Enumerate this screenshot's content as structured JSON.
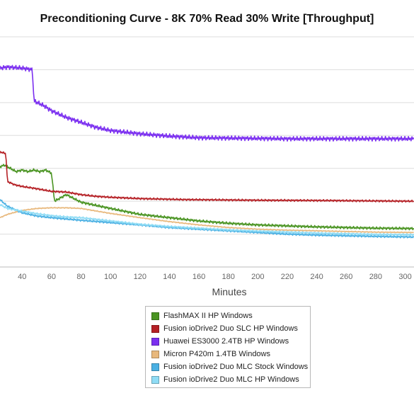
{
  "chart_data": {
    "type": "line",
    "title": "Preconditioning Curve - 8K 70% Read 30% Write [Throughput]",
    "xlabel": "Minutes",
    "ylabel": "",
    "xlim": [
      25,
      306
    ],
    "ylim": [
      0,
      7
    ],
    "x_ticks": [
      40,
      60,
      80,
      100,
      120,
      140,
      160,
      180,
      200,
      220,
      240,
      260,
      280,
      300
    ],
    "y_gridlines": [
      1,
      2,
      3,
      4,
      5,
      6,
      7
    ],
    "grid": true,
    "legend_position": "bottom",
    "series": [
      {
        "name": "FlashMAX II HP Windows",
        "color": "#4a9422",
        "noise": 0.04,
        "points": [
          [
            25,
            3.05
          ],
          [
            28,
            3.1
          ],
          [
            32,
            3.0
          ],
          [
            36,
            2.9
          ],
          [
            40,
            2.95
          ],
          [
            44,
            2.9
          ],
          [
            48,
            2.95
          ],
          [
            52,
            2.9
          ],
          [
            56,
            2.95
          ],
          [
            60,
            2.85
          ],
          [
            62,
            2.0
          ],
          [
            70,
            2.2
          ],
          [
            80,
            1.97
          ],
          [
            100,
            1.78
          ],
          [
            120,
            1.6
          ],
          [
            140,
            1.5
          ],
          [
            160,
            1.4
          ],
          [
            180,
            1.33
          ],
          [
            200,
            1.28
          ],
          [
            220,
            1.25
          ],
          [
            240,
            1.22
          ],
          [
            260,
            1.2
          ],
          [
            280,
            1.18
          ],
          [
            306,
            1.17
          ]
        ]
      },
      {
        "name": "Fusion ioDrive2 Duo SLC HP Windows",
        "color": "#b52025",
        "noise": 0.03,
        "points": [
          [
            25,
            3.5
          ],
          [
            29,
            3.45
          ],
          [
            30,
            2.6
          ],
          [
            35,
            2.5
          ],
          [
            40,
            2.45
          ],
          [
            50,
            2.38
          ],
          [
            60,
            2.3
          ],
          [
            70,
            2.28
          ],
          [
            80,
            2.2
          ],
          [
            90,
            2.15
          ],
          [
            100,
            2.12
          ],
          [
            120,
            2.08
          ],
          [
            150,
            2.05
          ],
          [
            200,
            2.03
          ],
          [
            250,
            2.02
          ],
          [
            306,
            2.0
          ]
        ]
      },
      {
        "name": "Huawei ES3000 2.4TB HP Windows",
        "color": "#7b2ff0",
        "noise": 0.07,
        "points": [
          [
            25,
            6.05
          ],
          [
            30,
            6.08
          ],
          [
            40,
            6.05
          ],
          [
            47,
            6.0
          ],
          [
            48,
            5.05
          ],
          [
            55,
            4.9
          ],
          [
            60,
            4.75
          ],
          [
            70,
            4.55
          ],
          [
            80,
            4.4
          ],
          [
            90,
            4.25
          ],
          [
            100,
            4.15
          ],
          [
            120,
            4.05
          ],
          [
            140,
            3.98
          ],
          [
            160,
            3.93
          ],
          [
            180,
            3.92
          ],
          [
            220,
            3.9
          ],
          [
            260,
            3.9
          ],
          [
            306,
            3.9
          ]
        ]
      },
      {
        "name": "Micron P420m 1.4TB Windows",
        "color": "#e8b87c",
        "noise": 0.015,
        "points": [
          [
            25,
            1.5
          ],
          [
            30,
            1.6
          ],
          [
            40,
            1.72
          ],
          [
            50,
            1.78
          ],
          [
            60,
            1.8
          ],
          [
            70,
            1.8
          ],
          [
            80,
            1.78
          ],
          [
            100,
            1.63
          ],
          [
            120,
            1.5
          ],
          [
            140,
            1.38
          ],
          [
            160,
            1.28
          ],
          [
            180,
            1.2
          ],
          [
            200,
            1.15
          ],
          [
            220,
            1.12
          ],
          [
            240,
            1.1
          ],
          [
            260,
            1.08
          ],
          [
            280,
            1.06
          ],
          [
            306,
            1.05
          ]
        ]
      },
      {
        "name": "Fusion ioDrive2 Duo MLC Stock Windows",
        "color": "#4ab0e3",
        "noise": 0.03,
        "points": [
          [
            25,
            2.05
          ],
          [
            30,
            1.85
          ],
          [
            40,
            1.65
          ],
          [
            50,
            1.55
          ],
          [
            60,
            1.5
          ],
          [
            80,
            1.42
          ],
          [
            100,
            1.35
          ],
          [
            120,
            1.28
          ],
          [
            140,
            1.2
          ],
          [
            160,
            1.15
          ],
          [
            180,
            1.1
          ],
          [
            200,
            1.05
          ],
          [
            220,
            1.0
          ],
          [
            240,
            0.97
          ],
          [
            260,
            0.95
          ],
          [
            280,
            0.93
          ],
          [
            306,
            0.91
          ]
        ]
      },
      {
        "name": "Fusion ioDrive2 Duo MLC HP Windows",
        "color": "#8fdcf5",
        "noise": 0.03,
        "points": [
          [
            25,
            1.9
          ],
          [
            30,
            1.78
          ],
          [
            40,
            1.7
          ],
          [
            50,
            1.62
          ],
          [
            60,
            1.56
          ],
          [
            70,
            1.52
          ],
          [
            80,
            1.5
          ],
          [
            100,
            1.4
          ],
          [
            120,
            1.3
          ],
          [
            140,
            1.23
          ],
          [
            160,
            1.18
          ],
          [
            180,
            1.13
          ],
          [
            200,
            1.09
          ],
          [
            220,
            1.06
          ],
          [
            240,
            1.03
          ],
          [
            260,
            1.01
          ],
          [
            280,
            0.99
          ],
          [
            306,
            0.98
          ]
        ]
      }
    ]
  }
}
